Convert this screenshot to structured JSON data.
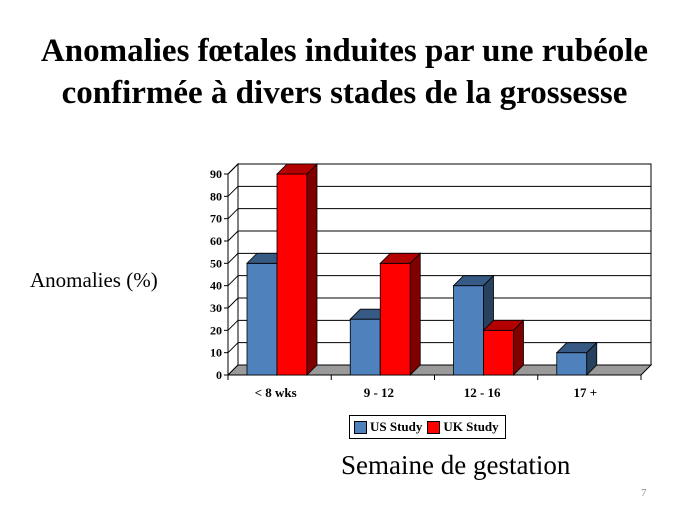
{
  "title": "Anomalies fœtales induites par une rubéole confirmée à divers stades de la grossesse",
  "page_number": "7",
  "chart_data": {
    "type": "bar",
    "title": "Anomalies fœtales induites par une rubéole confirmée à divers stades de la grossesse",
    "xlabel": "Semaine de gestation",
    "ylabel": "Anomalies (%)",
    "categories": [
      "< 8 wks",
      "9 - 12",
      "12 - 16",
      "17 +"
    ],
    "yticks": [
      "0",
      "10",
      "20",
      "30",
      "40",
      "50",
      "60",
      "70",
      "80",
      "90"
    ],
    "ylim": [
      0,
      90
    ],
    "grid": true,
    "legend_position": "bottom",
    "series": [
      {
        "name": "US Study",
        "values": [
          50,
          25,
          40,
          10
        ],
        "color": "#4f81bd"
      },
      {
        "name": "UK Study",
        "values": [
          90,
          50,
          20,
          null
        ],
        "color": "#ff0000"
      }
    ]
  }
}
